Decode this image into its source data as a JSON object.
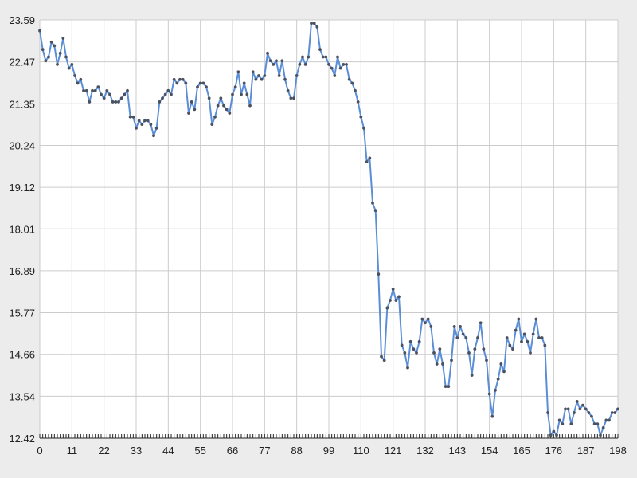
{
  "chart_data": {
    "type": "line",
    "title": "",
    "xlabel": "",
    "ylabel": "",
    "xlim": [
      0,
      198
    ],
    "ylim": [
      12.42,
      23.59
    ],
    "x_tick_labels": [
      "0",
      "11",
      "22",
      "33",
      "44",
      "55",
      "66",
      "77",
      "88",
      "99",
      "110",
      "121",
      "132",
      "143",
      "154",
      "165",
      "176",
      "187",
      "198"
    ],
    "y_tick_labels": [
      "12.42",
      "13.54",
      "14.66",
      "15.77",
      "16.89",
      "18.01",
      "19.12",
      "20.24",
      "21.35",
      "22.47",
      "23.59"
    ],
    "grid": true,
    "legend": "none",
    "colors": {
      "line": "#5b8ed6",
      "marker": "#4a5160",
      "grid": "#cccccc",
      "axis": "#222222",
      "plot_bg": "#ffffff",
      "page_bg": "#ececec"
    },
    "series": [
      {
        "values": [
          23.3,
          22.8,
          22.5,
          22.6,
          23.0,
          22.9,
          22.4,
          22.7,
          23.1,
          22.6,
          22.3,
          22.4,
          22.1,
          21.9,
          22.0,
          21.7,
          21.7,
          21.4,
          21.7,
          21.7,
          21.8,
          21.6,
          21.5,
          21.7,
          21.6,
          21.4,
          21.4,
          21.4,
          21.5,
          21.6,
          21.7,
          21.0,
          21.0,
          20.7,
          20.9,
          20.8,
          20.9,
          20.9,
          20.8,
          20.5,
          20.7,
          21.4,
          21.5,
          21.6,
          21.7,
          21.6,
          22.0,
          21.9,
          22.0,
          22.0,
          21.9,
          21.1,
          21.4,
          21.2,
          21.8,
          21.9,
          21.9,
          21.8,
          21.5,
          20.8,
          21.0,
          21.3,
          21.5,
          21.3,
          21.2,
          21.1,
          21.6,
          21.8,
          22.2,
          21.6,
          21.9,
          21.6,
          21.3,
          22.2,
          22.0,
          22.1,
          22.0,
          22.1,
          22.7,
          22.5,
          22.4,
          22.5,
          22.1,
          22.5,
          22.0,
          21.7,
          21.5,
          21.5,
          22.1,
          22.4,
          22.6,
          22.4,
          22.6,
          23.5,
          23.5,
          23.4,
          22.8,
          22.6,
          22.6,
          22.4,
          22.3,
          22.1,
          22.6,
          22.3,
          22.4,
          22.4,
          22.0,
          21.9,
          21.7,
          21.4,
          21.0,
          20.7,
          19.8,
          19.9,
          18.7,
          18.5,
          16.8,
          14.6,
          14.5,
          15.9,
          16.1,
          16.4,
          16.1,
          16.2,
          14.9,
          14.7,
          14.3,
          15.0,
          14.8,
          14.7,
          15.0,
          15.6,
          15.5,
          15.6,
          15.4,
          14.7,
          14.4,
          14.8,
          14.4,
          13.8,
          13.8,
          14.5,
          15.4,
          15.1,
          15.4,
          15.2,
          15.1,
          14.7,
          14.1,
          14.8,
          15.1,
          15.5,
          14.8,
          14.5,
          13.6,
          13.0,
          13.7,
          14.0,
          14.4,
          14.2,
          15.1,
          14.9,
          14.8,
          15.3,
          15.6,
          15.0,
          15.2,
          15.0,
          14.7,
          15.2,
          15.6,
          15.1,
          15.1,
          14.9,
          13.1,
          12.5,
          12.6,
          12.5,
          12.9,
          12.8,
          13.2,
          13.2,
          12.8,
          13.1,
          13.4,
          13.2,
          13.3,
          13.2,
          13.1,
          13.0,
          12.8,
          12.8,
          12.5,
          12.7,
          12.9,
          12.9,
          13.1,
          13.1,
          13.2
        ]
      }
    ]
  }
}
